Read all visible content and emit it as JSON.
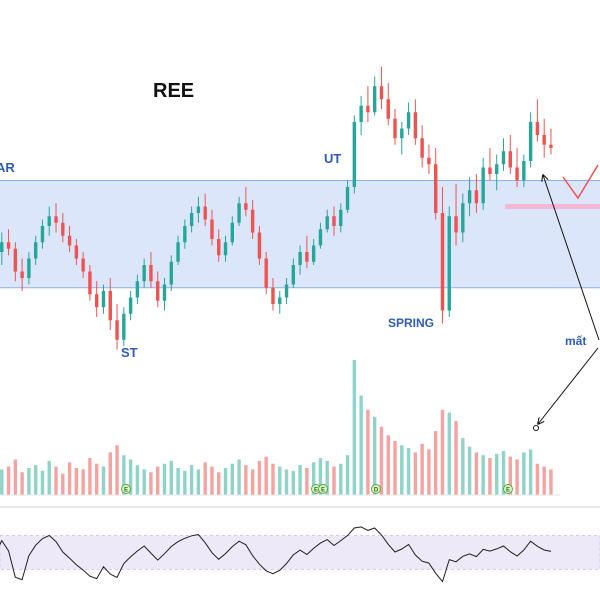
{
  "chart_data": {
    "type": "candlestick",
    "title": "REE",
    "annotations": [
      {
        "id": "ar",
        "text": "AR"
      },
      {
        "id": "st",
        "text": "ST"
      },
      {
        "id": "ut",
        "text": "UT"
      },
      {
        "id": "spring",
        "text": "SPRING"
      },
      {
        "id": "loss",
        "text": "mất"
      }
    ],
    "event_markers": [
      "E",
      "E",
      "E",
      "D",
      "E"
    ],
    "colors": {
      "up": "#26a69a",
      "down": "#ef5350",
      "up_volume": "#8fd3c9",
      "down_volume": "#f4a3a1",
      "range_zone": "#dbe6fb",
      "range_border": "#8fb0ee",
      "oscillator_line": "#1f1f1f",
      "oscillator_band": "#ede9f8",
      "pink_level": "#f3b9d4",
      "label_blue": "#2e5cb8",
      "arrow": "#111111",
      "marker_fill": "#d8f5c4",
      "marker_stroke": "#5aa846"
    },
    "price_range": [
      0,
      100
    ],
    "range_zone": [
      33,
      66
    ],
    "oscillator_band": [
      30,
      70
    ],
    "grid": false,
    "candles": [
      [
        41,
        46,
        36,
        44
      ],
      [
        44,
        50,
        40,
        47
      ],
      [
        47,
        51,
        43,
        45
      ],
      [
        45,
        47,
        35,
        38
      ],
      [
        38,
        42,
        32,
        36
      ],
      [
        36,
        44,
        34,
        42
      ],
      [
        42,
        49,
        40,
        47
      ],
      [
        47,
        54,
        45,
        52
      ],
      [
        52,
        58,
        49,
        55
      ],
      [
        55,
        59,
        50,
        53
      ],
      [
        53,
        56,
        47,
        49
      ],
      [
        49,
        52,
        44,
        46
      ],
      [
        46,
        48,
        40,
        42
      ],
      [
        42,
        44,
        36,
        38
      ],
      [
        38,
        40,
        29,
        31
      ],
      [
        31,
        35,
        24,
        27
      ],
      [
        27,
        34,
        25,
        32
      ],
      [
        32,
        36,
        20,
        23
      ],
      [
        23,
        28,
        14,
        17
      ],
      [
        17,
        27,
        15,
        25
      ],
      [
        25,
        32,
        23,
        30
      ],
      [
        30,
        37,
        28,
        35
      ],
      [
        35,
        42,
        33,
        40
      ],
      [
        40,
        44,
        33,
        35
      ],
      [
        35,
        38,
        27,
        29
      ],
      [
        29,
        36,
        26,
        34
      ],
      [
        34,
        43,
        32,
        41
      ],
      [
        41,
        49,
        40,
        47
      ],
      [
        47,
        54,
        45,
        52
      ],
      [
        52,
        58,
        50,
        56
      ],
      [
        56,
        61,
        53,
        58
      ],
      [
        58,
        62,
        52,
        54
      ],
      [
        54,
        57,
        46,
        48
      ],
      [
        48,
        51,
        41,
        43
      ],
      [
        43,
        49,
        41,
        47
      ],
      [
        47,
        55,
        46,
        53
      ],
      [
        53,
        61,
        52,
        59
      ],
      [
        59,
        64,
        55,
        57
      ],
      [
        57,
        60,
        48,
        50
      ],
      [
        50,
        52,
        40,
        42
      ],
      [
        42,
        44,
        31,
        33
      ],
      [
        33,
        36,
        26,
        28
      ],
      [
        28,
        32,
        25,
        30
      ],
      [
        30,
        36,
        28,
        34
      ],
      [
        34,
        42,
        33,
        40
      ],
      [
        40,
        46,
        37,
        44
      ],
      [
        44,
        49,
        39,
        41
      ],
      [
        41,
        48,
        40,
        46
      ],
      [
        46,
        53,
        45,
        51
      ],
      [
        51,
        57,
        50,
        55
      ],
      [
        55,
        58,
        49,
        52
      ],
      [
        52,
        59,
        50,
        57
      ],
      [
        57,
        66,
        56,
        64
      ],
      [
        64,
        86,
        62,
        84
      ],
      [
        84,
        92,
        80,
        89
      ],
      [
        89,
        95,
        84,
        87
      ],
      [
        87,
        98,
        86,
        95
      ],
      [
        95,
        101,
        88,
        91
      ],
      [
        91,
        96,
        83,
        85
      ],
      [
        85,
        88,
        77,
        79
      ],
      [
        79,
        84,
        74,
        82
      ],
      [
        82,
        90,
        80,
        87
      ],
      [
        87,
        91,
        77,
        79
      ],
      [
        79,
        83,
        70,
        73
      ],
      [
        73,
        77,
        68,
        71
      ],
      [
        71,
        76,
        54,
        56
      ],
      [
        56,
        64,
        22,
        26
      ],
      [
        26,
        58,
        24,
        55
      ],
      [
        55,
        65,
        46,
        50
      ],
      [
        50,
        62,
        47,
        59
      ],
      [
        59,
        67,
        55,
        63
      ],
      [
        63,
        68,
        56,
        59
      ],
      [
        59,
        73,
        57,
        70
      ],
      [
        70,
        76,
        66,
        68
      ],
      [
        68,
        74,
        63,
        71
      ],
      [
        71,
        79,
        69,
        75
      ],
      [
        75,
        80,
        68,
        70
      ],
      [
        70,
        76,
        64,
        66
      ],
      [
        66,
        74,
        64,
        72
      ],
      [
        72,
        87,
        70,
        84
      ],
      [
        84,
        91,
        78,
        80
      ],
      [
        80,
        85,
        73,
        77
      ],
      [
        77,
        82,
        74,
        76
      ]
    ],
    "volumes": [
      22,
      18,
      20,
      25,
      16,
      19,
      21,
      17,
      24,
      20,
      15,
      23,
      19,
      18,
      26,
      22,
      20,
      30,
      35,
      28,
      25,
      21,
      18,
      16,
      20,
      22,
      24,
      19,
      17,
      21,
      18,
      23,
      20,
      16,
      19,
      22,
      25,
      21,
      18,
      24,
      27,
      22,
      20,
      18,
      17,
      21,
      19,
      23,
      26,
      24,
      20,
      22,
      28,
      95,
      70,
      60,
      55,
      48,
      42,
      38,
      35,
      33,
      30,
      36,
      32,
      45,
      60,
      58,
      52,
      40,
      34,
      30,
      28,
      26,
      29,
      31,
      27,
      25,
      30,
      32,
      22,
      20,
      18
    ]
  }
}
